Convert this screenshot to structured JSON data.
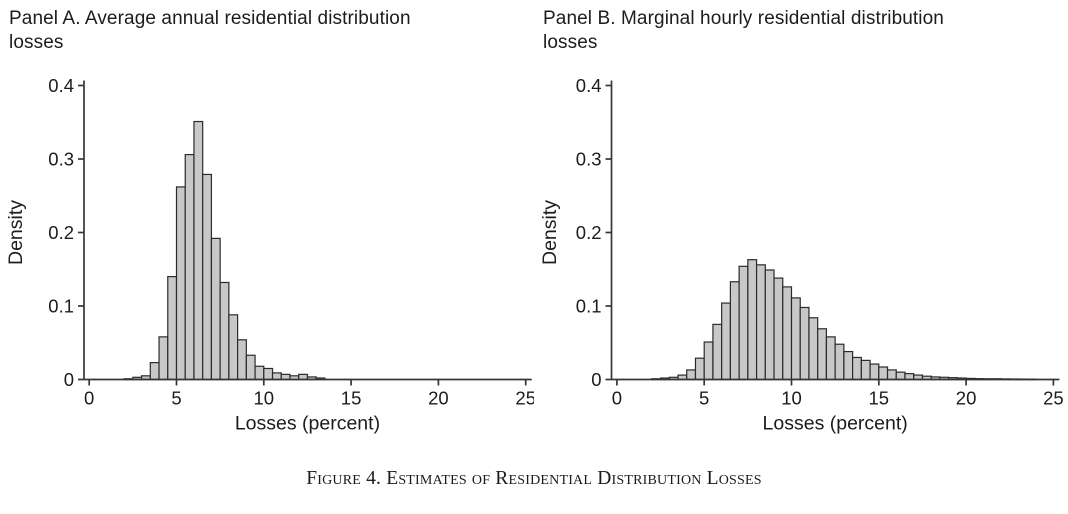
{
  "figure": {
    "caption": "Figure 4. Estimates of Residential Distribution Losses"
  },
  "colors": {
    "background": "#ffffff",
    "bar_fill": "#c8c8c8",
    "bar_stroke": "#2b2b2b",
    "axis": "#363636",
    "text": "#1c1c1c"
  },
  "chart_data": [
    {
      "type": "bar",
      "panel": "A",
      "title": "Panel A. Average annual residential distribution losses",
      "xlabel": "Losses (percent)",
      "ylabel": "Density",
      "xlim": [
        0,
        25
      ],
      "ylim": [
        0,
        0.4
      ],
      "grid": false,
      "legend": false,
      "bin_start": 2.0,
      "bin_width": 0.5,
      "x_ticks": [
        {
          "value": 0,
          "label": "0"
        },
        {
          "value": 5,
          "label": "5"
        },
        {
          "value": 10,
          "label": "10"
        },
        {
          "value": 15,
          "label": "15"
        },
        {
          "value": 20,
          "label": "20"
        },
        {
          "value": 25,
          "label": "25"
        }
      ],
      "y_ticks": [
        {
          "value": 0,
          "label": "0"
        },
        {
          "value": 0.1,
          "label": "0.1"
        },
        {
          "value": 0.2,
          "label": "0.2"
        },
        {
          "value": 0.3,
          "label": "0.3"
        },
        {
          "value": 0.4,
          "label": "0.4"
        }
      ],
      "densities": [
        0.001,
        0.003,
        0.005,
        0.023,
        0.058,
        0.14,
        0.262,
        0.306,
        0.351,
        0.279,
        0.192,
        0.132,
        0.088,
        0.054,
        0.033,
        0.018,
        0.015,
        0.009,
        0.007,
        0.005,
        0.007,
        0.0035,
        0.002
      ]
    },
    {
      "type": "bar",
      "panel": "B",
      "title": "Panel B. Marginal hourly residential distribution losses",
      "xlabel": "Losses (percent)",
      "ylabel": "Density",
      "xlim": [
        0,
        25
      ],
      "ylim": [
        0,
        0.4
      ],
      "grid": false,
      "legend": false,
      "bin_start": 2.0,
      "bin_width": 0.5,
      "x_ticks": [
        {
          "value": 0,
          "label": "0"
        },
        {
          "value": 5,
          "label": "5"
        },
        {
          "value": 10,
          "label": "10"
        },
        {
          "value": 15,
          "label": "15"
        },
        {
          "value": 20,
          "label": "20"
        },
        {
          "value": 25,
          "label": "25"
        }
      ],
      "y_ticks": [
        {
          "value": 0,
          "label": "0"
        },
        {
          "value": 0.1,
          "label": "0.1"
        },
        {
          "value": 0.2,
          "label": "0.2"
        },
        {
          "value": 0.3,
          "label": "0.3"
        },
        {
          "value": 0.4,
          "label": "0.4"
        }
      ],
      "densities": [
        0.001,
        0.002,
        0.003,
        0.006,
        0.013,
        0.029,
        0.051,
        0.075,
        0.104,
        0.133,
        0.154,
        0.163,
        0.156,
        0.149,
        0.138,
        0.126,
        0.111,
        0.098,
        0.084,
        0.069,
        0.058,
        0.048,
        0.038,
        0.03,
        0.026,
        0.021,
        0.017,
        0.013,
        0.01,
        0.008,
        0.006,
        0.0045,
        0.0035,
        0.003,
        0.0025,
        0.002,
        0.0015,
        0.0012,
        0.001,
        0.001,
        0.0008,
        0.0007,
        0.0006,
        0.0005
      ]
    }
  ]
}
